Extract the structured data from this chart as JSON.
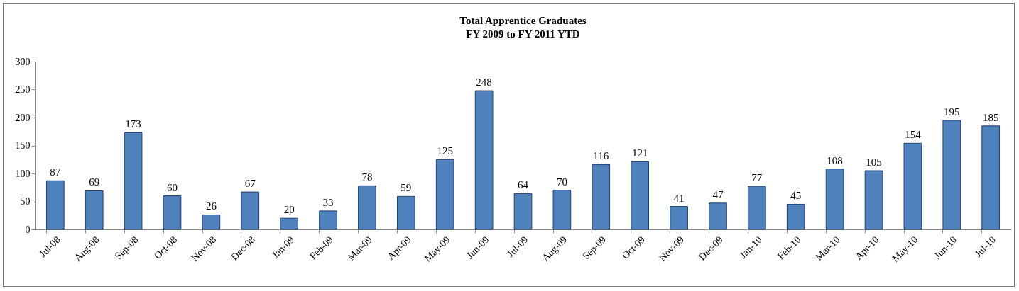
{
  "chart_data": {
    "type": "bar",
    "title": "Total Apprentice Graduates",
    "subtitle": "FY 2009 to FY 2011 YTD",
    "categories": [
      "Jul-08",
      "Aug-08",
      "Sep-08",
      "Oct-08",
      "Nov-08",
      "Dec-08",
      "Jan-09",
      "Feb-09",
      "Mar-09",
      "Apr-09",
      "May-09",
      "Jun-09",
      "Jul-09",
      "Aug-09",
      "Sep-09",
      "Oct-09",
      "Nov-09",
      "Dec-09",
      "Jan-10",
      "Feb-10",
      "Mar-10",
      "Apr-10",
      "May-10",
      "Jun-10",
      "Jul-10"
    ],
    "values": [
      87,
      69,
      173,
      60,
      26,
      67,
      20,
      33,
      78,
      59,
      125,
      248,
      64,
      70,
      116,
      121,
      41,
      47,
      77,
      45,
      108,
      105,
      154,
      195,
      185
    ],
    "color": "#4f81bd",
    "ylim": [
      0,
      300
    ],
    "yticks": [
      0,
      50,
      100,
      150,
      200,
      250,
      300
    ],
    "grid": false,
    "data_labels": true
  }
}
